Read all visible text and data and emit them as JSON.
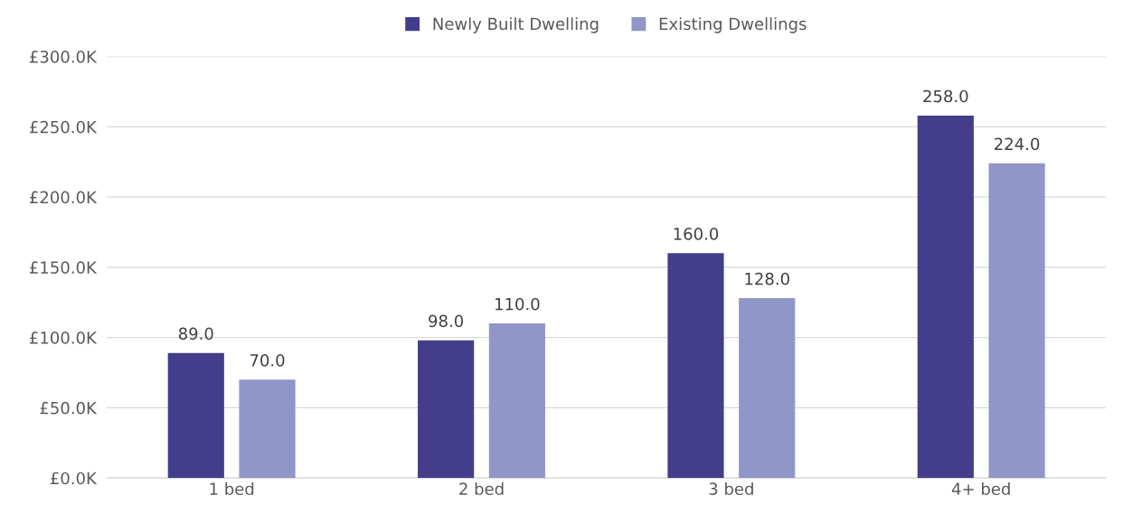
{
  "chart_data": {
    "type": "bar",
    "categories": [
      "1 bed",
      "2 bed",
      "3 bed",
      "4+ bed"
    ],
    "series": [
      {
        "name": "Newly Built Dwelling",
        "color": "#433d8b",
        "values": [
          89,
          98,
          160,
          258
        ],
        "value_labels": [
          "89.0",
          "98.0",
          "160.0",
          "258.0"
        ]
      },
      {
        "name": "Existing Dwellings",
        "color": "#9196c8",
        "values": [
          70,
          110,
          128,
          224
        ],
        "value_labels": [
          "70.0",
          "110.0",
          "128.0",
          "224.0"
        ]
      }
    ],
    "ylim": [
      0,
      300
    ],
    "yticks": [
      {
        "value": 0,
        "label": "£0.0K"
      },
      {
        "value": 50,
        "label": "£50.0K"
      },
      {
        "value": 100,
        "label": "£100.0K"
      },
      {
        "value": 150,
        "label": "£150.0K"
      },
      {
        "value": 200,
        "label": "£200.0K"
      },
      {
        "value": 250,
        "label": "£250.0K"
      },
      {
        "value": 300,
        "label": "£300.0K"
      }
    ],
    "grid": "y",
    "legend": "top"
  }
}
